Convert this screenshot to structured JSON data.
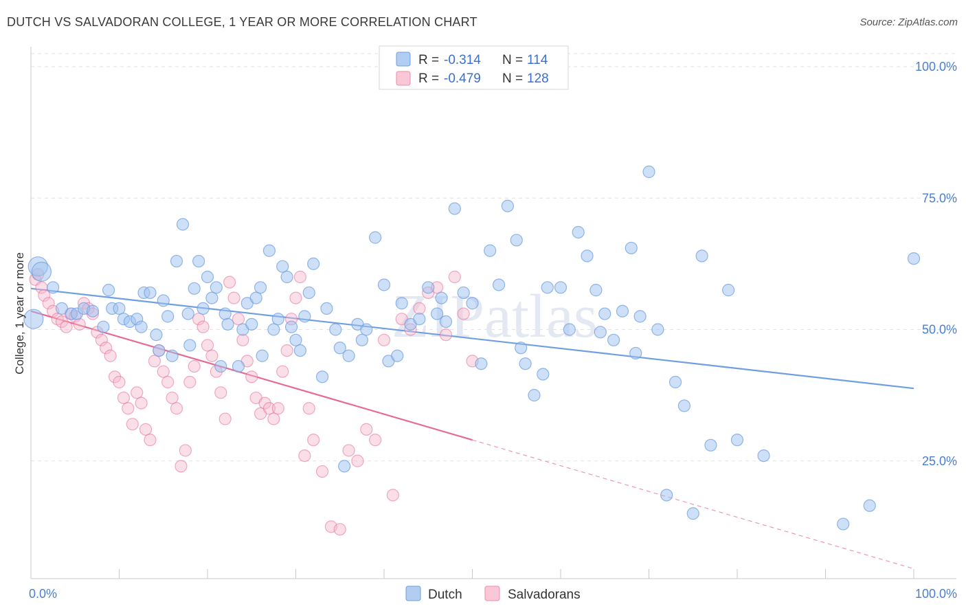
{
  "title": "DUTCH VS SALVADORAN COLLEGE, 1 YEAR OR MORE CORRELATION CHART",
  "source": "Source: ZipAtlas.com",
  "watermark": "ZIPatlas",
  "legend_top": {
    "rows": [
      {
        "r_label": "R =",
        "r_value": "-0.314",
        "n_label": "N =",
        "n_value": "114",
        "color": "#9ec2ef",
        "stroke": "#6f9fe0"
      },
      {
        "r_label": "R =",
        "r_value": "-0.479",
        "n_label": "N =",
        "n_value": "128",
        "color": "#f7b9cb",
        "stroke": "#ee8eaa"
      }
    ]
  },
  "legend_bottom": [
    {
      "label": "Dutch",
      "color": "#9ec2ef",
      "stroke": "#6f9fe0"
    },
    {
      "label": "Salvadorans",
      "color": "#f7b9cb",
      "stroke": "#ee8eaa"
    }
  ],
  "chart_data": {
    "type": "scatter",
    "title": "DUTCH VS SALVADORAN COLLEGE, 1 YEAR OR MORE CORRELATION CHART",
    "xlabel": "",
    "ylabel": "College, 1 year or more",
    "xlim": [
      0,
      100
    ],
    "ylim": [
      0,
      100
    ],
    "x_tick_labels": [
      "0.0%",
      "100.0%"
    ],
    "y_tick_labels": [
      "25.0%",
      "50.0%",
      "75.0%",
      "100.0%"
    ],
    "y_ticks": [
      25,
      50,
      75,
      100
    ],
    "grid": true,
    "legend_position": "top-center",
    "series": [
      {
        "name": "Dutch",
        "color": "#6f9fe0",
        "fill": "#9ec2ef",
        "r": -0.314,
        "n": 114,
        "trend": {
          "x": [
            0,
            100
          ],
          "y": [
            57.8,
            38.8
          ],
          "solid_until": 100
        },
        "points": [
          [
            0.8,
            62
          ],
          [
            1.2,
            61
          ],
          [
            0.3,
            52
          ],
          [
            2.5,
            58
          ],
          [
            3.5,
            54
          ],
          [
            4.6,
            53
          ],
          [
            5.2,
            53
          ],
          [
            6,
            54
          ],
          [
            7,
            53.5
          ],
          [
            8.2,
            50.5
          ],
          [
            8.8,
            57.5
          ],
          [
            9.2,
            54
          ],
          [
            10,
            54
          ],
          [
            10.5,
            52
          ],
          [
            11.2,
            51.5
          ],
          [
            12,
            52
          ],
          [
            12.5,
            50.5
          ],
          [
            12.8,
            57
          ],
          [
            13.5,
            57
          ],
          [
            14.2,
            49
          ],
          [
            14.5,
            46
          ],
          [
            15,
            55.5
          ],
          [
            15.5,
            52.5
          ],
          [
            16,
            45
          ],
          [
            16.5,
            63
          ],
          [
            17.2,
            70
          ],
          [
            17.8,
            53
          ],
          [
            18,
            47
          ],
          [
            18.5,
            57.8
          ],
          [
            19,
            63
          ],
          [
            19.5,
            54
          ],
          [
            20,
            60
          ],
          [
            20.5,
            56
          ],
          [
            21,
            58
          ],
          [
            21.5,
            43
          ],
          [
            22,
            53
          ],
          [
            22.3,
            51
          ],
          [
            23.5,
            43
          ],
          [
            24,
            50
          ],
          [
            24.5,
            55
          ],
          [
            25,
            51
          ],
          [
            25.5,
            56
          ],
          [
            26,
            58
          ],
          [
            26.2,
            45
          ],
          [
            27,
            65
          ],
          [
            27.5,
            50
          ],
          [
            28,
            52
          ],
          [
            28.5,
            62
          ],
          [
            29,
            60
          ],
          [
            29.5,
            50.5
          ],
          [
            30,
            48
          ],
          [
            30.5,
            46
          ],
          [
            31,
            52.5
          ],
          [
            31.5,
            57
          ],
          [
            32,
            62.5
          ],
          [
            33,
            41
          ],
          [
            33.5,
            54
          ],
          [
            34.5,
            50
          ],
          [
            35,
            46.5
          ],
          [
            35.5,
            24
          ],
          [
            36,
            45
          ],
          [
            37,
            51
          ],
          [
            37.5,
            48
          ],
          [
            38,
            50
          ],
          [
            39,
            67.5
          ],
          [
            40,
            58.5
          ],
          [
            40.5,
            44
          ],
          [
            41.5,
            45
          ],
          [
            42,
            55
          ],
          [
            43,
            51
          ],
          [
            44,
            52
          ],
          [
            45,
            58
          ],
          [
            46,
            53
          ],
          [
            46.5,
            56
          ],
          [
            47,
            51.5
          ],
          [
            48,
            73
          ],
          [
            49,
            57
          ],
          [
            50,
            55
          ],
          [
            51,
            43.5
          ],
          [
            52,
            65
          ],
          [
            53,
            58.5
          ],
          [
            54,
            73.5
          ],
          [
            55,
            67
          ],
          [
            55.5,
            46.5
          ],
          [
            56,
            43.5
          ],
          [
            57,
            37.5
          ],
          [
            58,
            41.5
          ],
          [
            58.5,
            58
          ],
          [
            60,
            58
          ],
          [
            61,
            50
          ],
          [
            62,
            68.5
          ],
          [
            63,
            64
          ],
          [
            64,
            57.5
          ],
          [
            64.5,
            49.5
          ],
          [
            65,
            53
          ],
          [
            66,
            48
          ],
          [
            67,
            53.5
          ],
          [
            68,
            65.5
          ],
          [
            68.5,
            45.5
          ],
          [
            69,
            52.5
          ],
          [
            70,
            80
          ],
          [
            71,
            50
          ],
          [
            72,
            18.5
          ],
          [
            73,
            40
          ],
          [
            74,
            35.5
          ],
          [
            75,
            15
          ],
          [
            76,
            64
          ],
          [
            77,
            28
          ],
          [
            79,
            57.5
          ],
          [
            80,
            29
          ],
          [
            83,
            26
          ],
          [
            92,
            13
          ],
          [
            95,
            16.5
          ],
          [
            100,
            63.5
          ]
        ]
      },
      {
        "name": "Salvadorans",
        "color": "#e66a93",
        "fill": "#f7b9cb",
        "r": -0.479,
        "n": 128,
        "trend": {
          "x": [
            0,
            100
          ],
          "y": [
            53.5,
            4.5
          ],
          "solid_until": 50
        }
      }
    ]
  }
}
